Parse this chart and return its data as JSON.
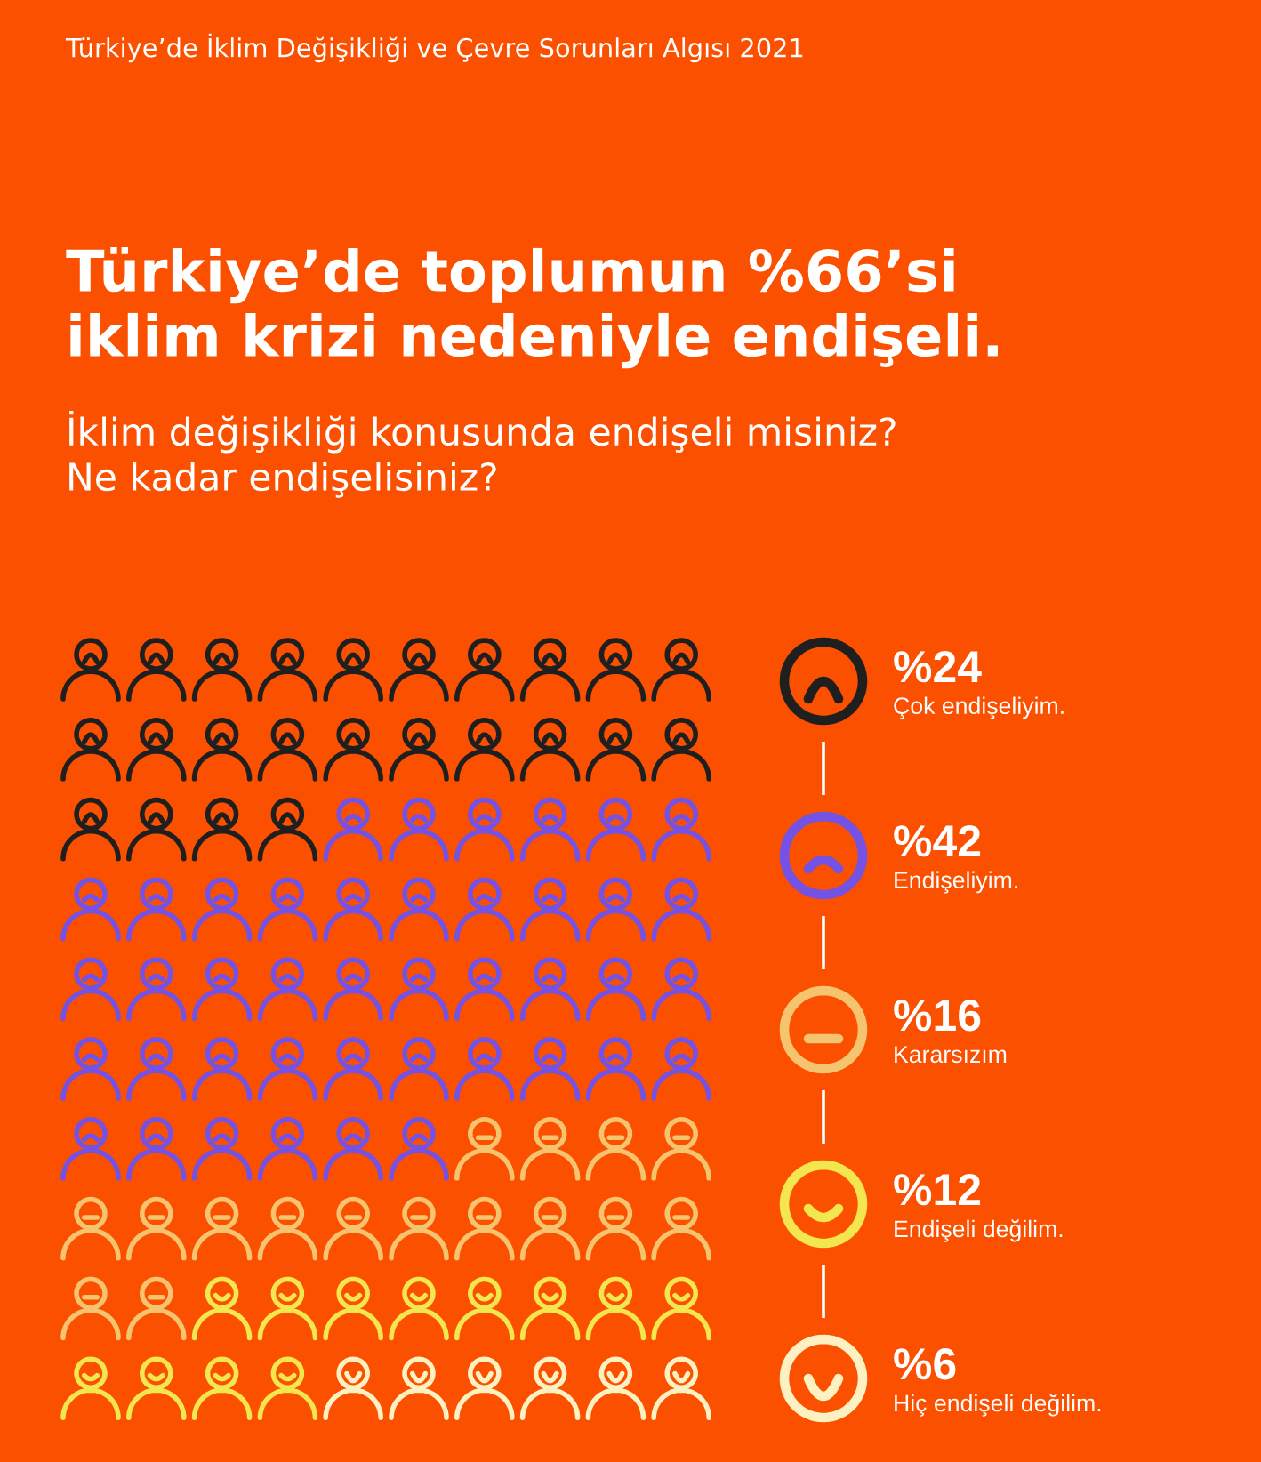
{
  "chart_data": {
    "type": "other",
    "title": "Türkiye’de toplumun %66’si\niklim krizi nedeniyle endişeli.",
    "subtitle": "İklim değişikliği konusunda endişeli misiniz?\nNe kadar endişelisiniz?",
    "annotations": [
      "Türkiye’de İklim Değişikliği ve Çevre Sorunları Algısı 2021"
    ],
    "categories": [
      "Çok endişeliyim.",
      "Endişeliyim.",
      "Kararsızım",
      "Endişeli değilim.",
      "Hiç endişeli değilim."
    ],
    "values": [
      24,
      42,
      16,
      12,
      6
    ],
    "value_labels": [
      "%24",
      "%42",
      "%16",
      "%12",
      "%6"
    ],
    "colors": [
      "#1f1f1f",
      "#7452e4",
      "#f6c36e",
      "#f3e64e",
      "#fdf1c2"
    ]
  }
}
